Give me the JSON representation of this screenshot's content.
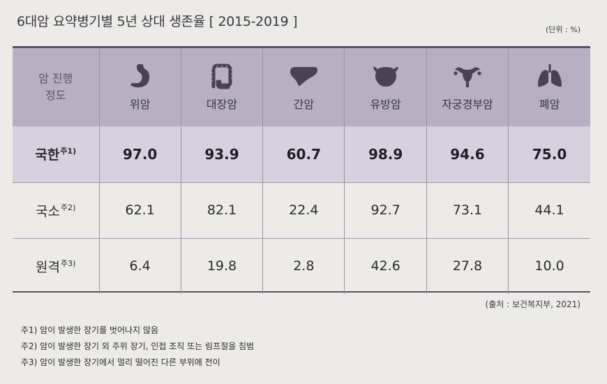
{
  "title": "6대암 요약병기별 5년 상대 생존율 [ 2015-2019 ]",
  "unit": "(단위 : %)",
  "table": {
    "stage_header": [
      "암 진행",
      "정도"
    ],
    "columns": [
      {
        "label": "위암",
        "icon": "stomach-icon"
      },
      {
        "label": "대장암",
        "icon": "colon-icon"
      },
      {
        "label": "간암",
        "icon": "liver-icon"
      },
      {
        "label": "유방암",
        "icon": "breast-icon"
      },
      {
        "label": "자궁경부암",
        "icon": "uterus-icon"
      },
      {
        "label": "폐암",
        "icon": "lungs-icon"
      }
    ],
    "rows": [
      {
        "label": "국한",
        "note": "주1)",
        "values": [
          "97.0",
          "93.9",
          "60.7",
          "98.9",
          "94.6",
          "75.0"
        ]
      },
      {
        "label": "국소",
        "note": "주2)",
        "values": [
          "62.1",
          "82.1",
          "22.4",
          "92.7",
          "73.1",
          "44.1"
        ]
      },
      {
        "label": "원격",
        "note": "주3)",
        "values": [
          "6.4",
          "19.8",
          "2.8",
          "42.6",
          "27.8",
          "10.0"
        ]
      }
    ]
  },
  "source": "(출처 : 보건복지부, 2021)",
  "notes": [
    "주1) 암이 발생한 장기를 벗어나지 않음",
    "주2) 암이 발생한 장기 외 주위 장기, 인접 조직 또는 림프절을 침범",
    "주3) 암이 발생한 장기에서 멀리 떨어진 다른 부위에 전이"
  ],
  "colors": {
    "header_bg": "#b8b0c2",
    "highlight_row_bg": "#d6d1dc",
    "icon": "#4a4152",
    "border": "#5b4f67"
  }
}
